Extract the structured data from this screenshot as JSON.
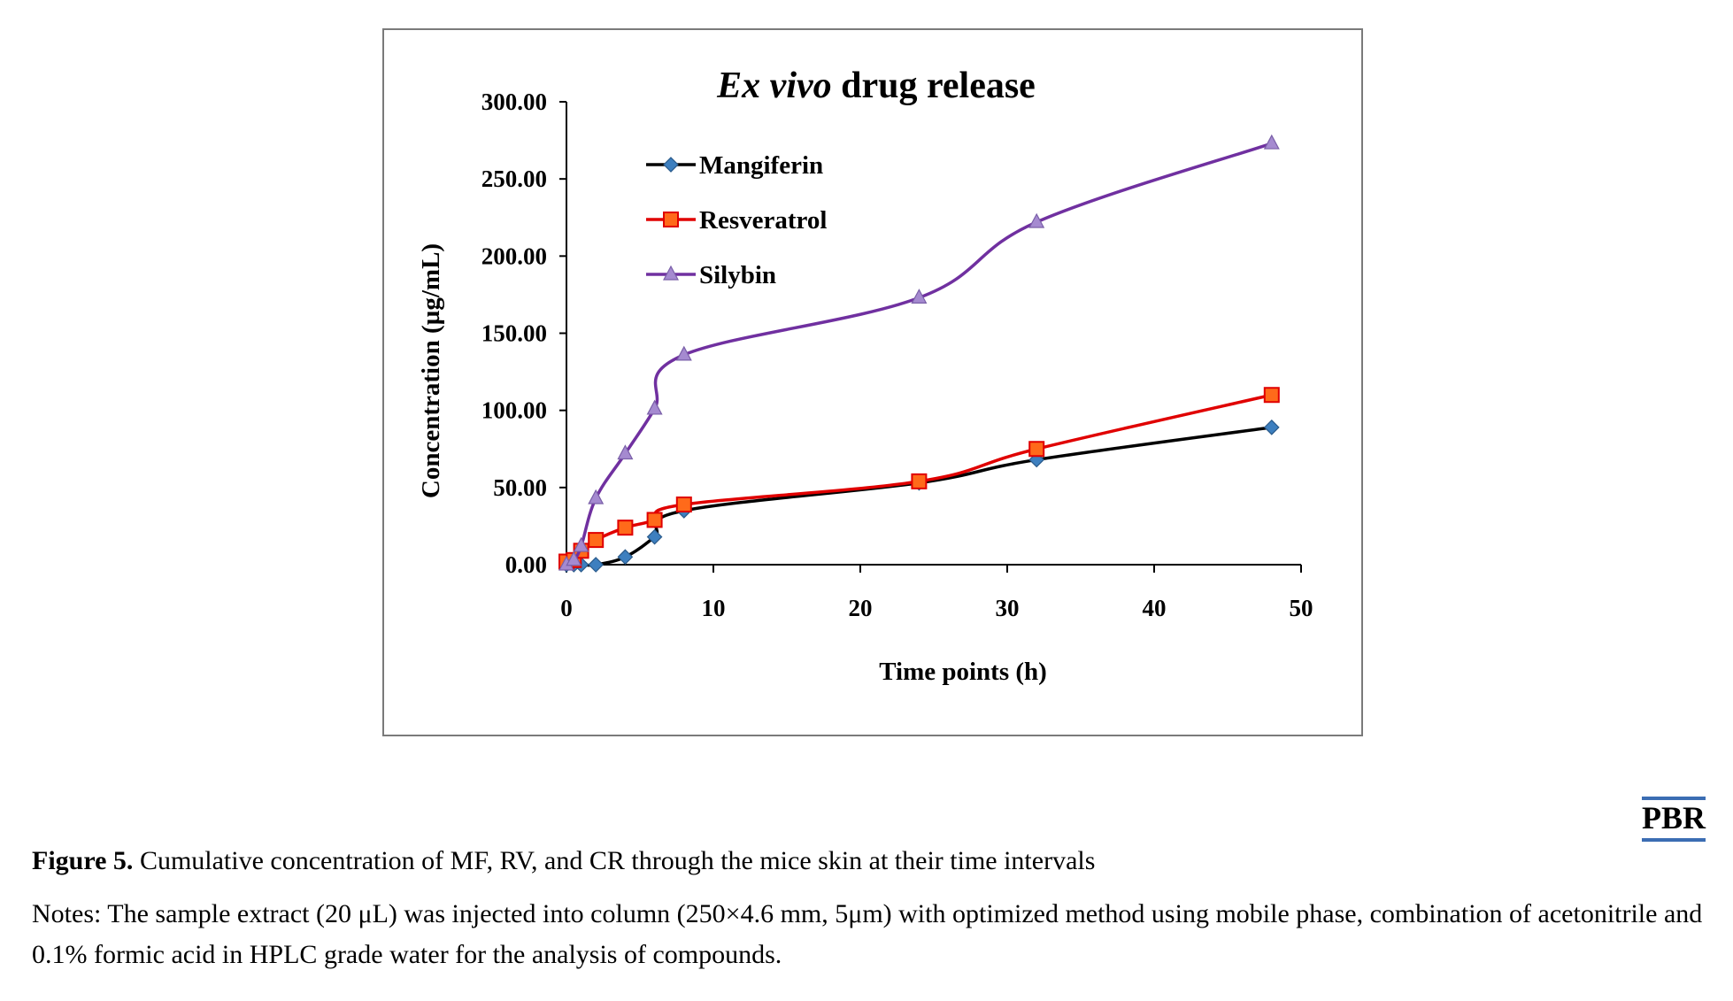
{
  "chart_data": {
    "type": "line",
    "title_italic": "Ex vivo",
    "title_rest": " drug release",
    "xlabel": "Time points (h)",
    "ylabel": "Concentration (µg/mL)",
    "xlim": [
      0,
      50
    ],
    "ylim": [
      0,
      300
    ],
    "xticks": [
      "0",
      "10",
      "20",
      "30",
      "40",
      "50"
    ],
    "yticks": [
      "0.00",
      "50.00",
      "100.00",
      "150.00",
      "200.00",
      "250.00",
      "300.00"
    ],
    "legend_position": "top-left",
    "grid": false,
    "series": [
      {
        "name": "Mangiferin",
        "color": "#000000",
        "marker_color": "#3d7fbf",
        "marker": "diamond",
        "x": [
          0,
          0.5,
          1,
          2,
          4,
          6,
          8,
          24,
          32,
          48
        ],
        "y": [
          0,
          0,
          0,
          0,
          5,
          18,
          35,
          53,
          68,
          89
        ]
      },
      {
        "name": "Resveratrol",
        "color": "#e00000",
        "marker_color": "#ff6a1a",
        "marker": "square",
        "x": [
          0,
          0.5,
          1,
          2,
          4,
          6,
          8,
          24,
          32,
          48
        ],
        "y": [
          2,
          3,
          9,
          16,
          24,
          29,
          39,
          54,
          75,
          110
        ]
      },
      {
        "name": "Silybin",
        "color": "#7030a0",
        "marker_color": "#a58ad0",
        "marker": "triangle",
        "x": [
          0,
          0.5,
          1,
          2,
          4,
          6,
          8,
          24,
          32,
          48
        ],
        "y": [
          0,
          3,
          12,
          43,
          72,
          101,
          136,
          173,
          222,
          273
        ]
      }
    ]
  },
  "logo_text": "PBR",
  "caption": {
    "figure_label": "Figure 5.",
    "text": " Cumulative concentration of MF, RV, and CR through the mice skin at their time intervals"
  },
  "notes": "Notes: The sample extract (20 μL) was injected into column (250×4.6 mm, 5μm) with optimized method using mobile phase, combination of acetonitrile and 0.1% formic acid in HPLC grade water for the analysis of compounds."
}
